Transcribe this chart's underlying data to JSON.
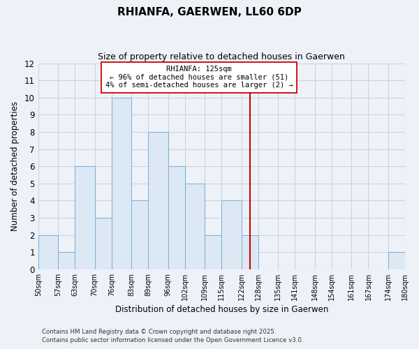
{
  "title": "RHIANFA, GAERWEN, LL60 6DP",
  "subtitle": "Size of property relative to detached houses in Gaerwen",
  "xlabel": "Distribution of detached houses by size in Gaerwen",
  "ylabel": "Number of detached properties",
  "footnote1": "Contains HM Land Registry data © Crown copyright and database right 2025.",
  "footnote2": "Contains public sector information licensed under the Open Government Licence v3.0.",
  "bin_edges": [
    50,
    57,
    63,
    70,
    76,
    83,
    89,
    96,
    102,
    109,
    115,
    122,
    128,
    135,
    141,
    148,
    154,
    161,
    167,
    174,
    180
  ],
  "bin_labels": [
    "50sqm",
    "57sqm",
    "63sqm",
    "70sqm",
    "76sqm",
    "83sqm",
    "89sqm",
    "96sqm",
    "102sqm",
    "109sqm",
    "115sqm",
    "122sqm",
    "128sqm",
    "135sqm",
    "141sqm",
    "148sqm",
    "154sqm",
    "161sqm",
    "167sqm",
    "174sqm",
    "180sqm"
  ],
  "counts": [
    2,
    1,
    6,
    3,
    10,
    4,
    8,
    6,
    5,
    2,
    4,
    2,
    0,
    0,
    0,
    0,
    0,
    0,
    0,
    1
  ],
  "bar_color": "#dce8f3",
  "bar_edge_color": "#7aaed6",
  "grid_color": "#c8d4e0",
  "background_color": "#eef2f8",
  "plot_bg_color": "#eef2f8",
  "vline_x": 125,
  "vline_color": "#cc0000",
  "annotation_title": "RHIANFA: 125sqm",
  "annotation_line1": "← 96% of detached houses are smaller (51)",
  "annotation_line2": "4% of semi-detached houses are larger (2) →",
  "annotation_box_color": "#ffffff",
  "annotation_box_edge": "#cc0000",
  "ylim": [
    0,
    12
  ],
  "yticks": [
    0,
    1,
    2,
    3,
    4,
    5,
    6,
    7,
    8,
    9,
    10,
    11,
    12
  ]
}
